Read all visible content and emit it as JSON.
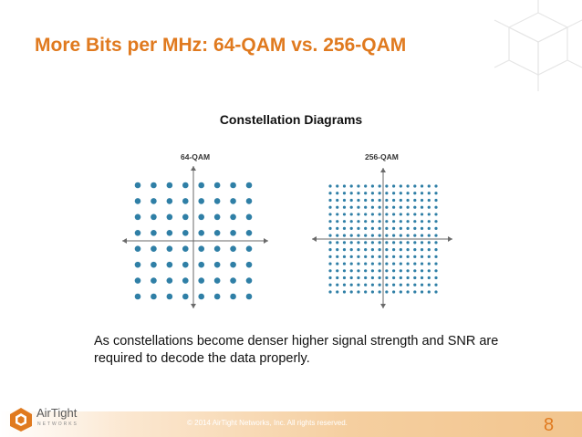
{
  "slide": {
    "title": "More Bits per MHz: 64-QAM vs. 256-QAM",
    "subtitle": "Constellation Diagrams",
    "caption": "As constellations become denser higher signal strength and SNR are required to decode the data properly.",
    "footer_text": "© 2014 AirTight Networks, Inc. All rights reserved.",
    "page_number": "8"
  },
  "logo": {
    "name": "AirTight",
    "tagline": "NETWORKS",
    "mark_color": "#e07a1f"
  },
  "colors": {
    "title": "#e07a1f",
    "dot": "#2f7fa6",
    "axis": "#6a6a6a"
  },
  "diagrams": [
    {
      "label": "64-QAM",
      "grid": 8
    },
    {
      "label": "256-QAM",
      "grid": 16
    }
  ]
}
